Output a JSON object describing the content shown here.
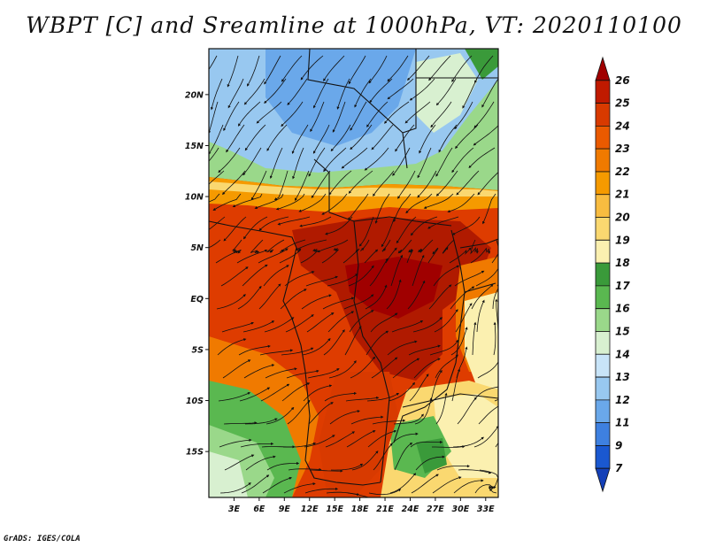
{
  "title": "WBPT [C] and Sreamline at 1000hPa, VT: 2020110100",
  "credit": "GrADS: IGES/COLA",
  "map": {
    "lon_labels": [
      "3E",
      "6E",
      "9E",
      "12E",
      "15E",
      "18E",
      "21E",
      "24E",
      "27E",
      "30E",
      "33E"
    ],
    "lat_labels": [
      "20N",
      "15N",
      "10N",
      "5N",
      "EQ",
      "5S",
      "10S",
      "15S"
    ],
    "lon_range": [
      0,
      34.5
    ],
    "lat_range": [
      -19.5,
      24.5
    ]
  },
  "colorbar": {
    "labels": [
      "26",
      "25",
      "24",
      "23",
      "22",
      "21",
      "20",
      "19",
      "18",
      "17",
      "16",
      "15",
      "14",
      "13",
      "12",
      "11",
      "9",
      "7"
    ],
    "colors": [
      "#a00000",
      "#c01a00",
      "#d83a00",
      "#ea5a00",
      "#f07a00",
      "#f59a00",
      "#f8bc40",
      "#fad870",
      "#fbf0b0",
      "#3a9a3a",
      "#5ab850",
      "#9ad88a",
      "#d8f0d0",
      "#c8e4f8",
      "#98c8f0",
      "#6aa8ea",
      "#3e80e0",
      "#1a58d0",
      "#1440b8"
    ]
  }
}
